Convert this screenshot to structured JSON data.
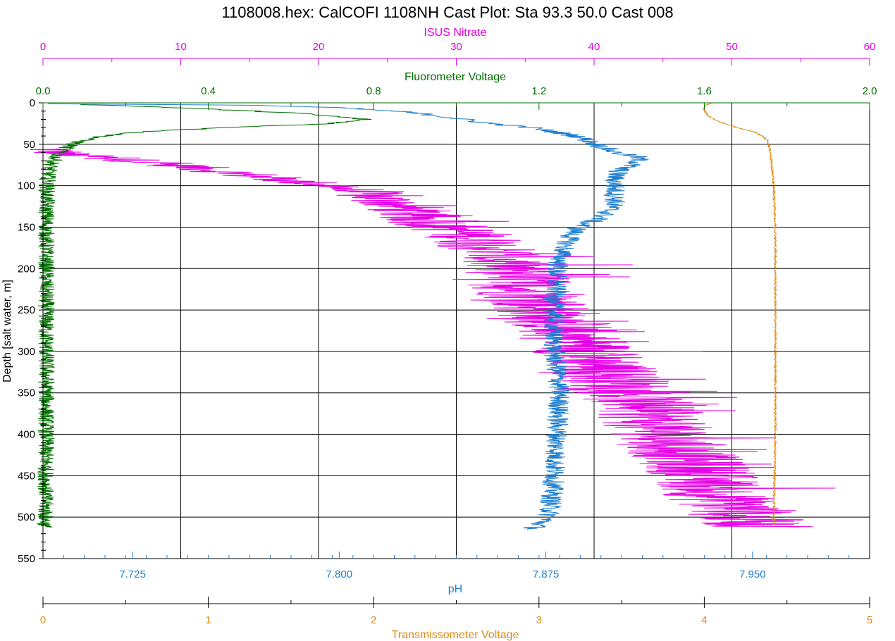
{
  "chart_data": {
    "type": "line",
    "title": "1108008.hex: CalCOFI 1108NH Cast Plot: Sta 93.3 50.0 Cast 008",
    "depth_axis": {
      "label": "Depth [salt water, m]",
      "range": [
        0,
        550
      ],
      "ticks": [
        "0",
        "50",
        "100",
        "150",
        "200",
        "250",
        "300",
        "350",
        "400",
        "450",
        "500",
        "550"
      ],
      "grid": true
    },
    "axes": {
      "nitrate": {
        "label": "ISUS Nitrate",
        "range": [
          0,
          60
        ],
        "ticks": [
          "0",
          "10",
          "20",
          "30",
          "40",
          "50",
          "60"
        ],
        "color": "#e600e6",
        "position": "top"
      },
      "fluorometer": {
        "label": "Fluorometer Voltage",
        "range": [
          0,
          2
        ],
        "ticks": [
          "0.0",
          "0.4",
          "0.8",
          "1.2",
          "1.6",
          "2.0"
        ],
        "color": "#007000",
        "position": "top"
      },
      "ph": {
        "label": "pH",
        "range": [
          7.6925,
          7.9925
        ],
        "ticks": [
          "7.725",
          "7.800",
          "7.875",
          "7.950"
        ],
        "color": "#1f7fcf",
        "position": "bottom"
      },
      "transmissometer": {
        "label": "Transmissometer Voltage",
        "range": [
          0,
          5
        ],
        "ticks": [
          "0",
          "1",
          "2",
          "3",
          "4",
          "5"
        ],
        "color": "#e08a10",
        "position": "bottom"
      }
    },
    "series": [
      {
        "name": "ISUS Nitrate",
        "axis": "nitrate",
        "depth": [
          55,
          62,
          70,
          80,
          90,
          100,
          110,
          125,
          140,
          150,
          160,
          175,
          200,
          225,
          250,
          275,
          300,
          325,
          350,
          375,
          400,
          425,
          450,
          475,
          500,
          512
        ],
        "values": [
          0.3,
          1.5,
          7,
          12,
          16,
          21,
          23.5,
          26,
          27.5,
          29.5,
          31,
          32.5,
          34,
          35,
          36.5,
          38,
          39.5,
          41,
          42.5,
          44,
          45,
          46.5,
          48,
          49,
          51,
          52
        ],
        "noise": 4
      },
      {
        "name": "Fluorometer Voltage",
        "axis": "fluorometer",
        "depth": [
          2,
          5,
          8,
          12,
          17,
          20,
          25,
          30,
          35,
          40,
          45,
          50,
          55,
          60,
          70,
          80,
          100,
          150,
          200,
          300,
          400,
          500,
          512
        ],
        "values": [
          0.1,
          0.28,
          0.42,
          0.6,
          0.72,
          0.78,
          0.7,
          0.44,
          0.24,
          0.15,
          0.1,
          0.07,
          0.055,
          0.04,
          0.025,
          0.015,
          0.01,
          0.008,
          0.008,
          0.008,
          0.008,
          0.006,
          0.004
        ],
        "noise": 0.02
      },
      {
        "name": "pH",
        "axis": "ph",
        "depth": [
          1,
          3,
          6,
          10,
          15,
          20,
          25,
          30,
          35,
          40,
          45,
          50,
          55,
          60,
          65,
          70,
          75,
          80,
          90,
          100,
          110,
          120,
          130,
          140,
          145,
          150,
          160,
          180,
          200,
          250,
          300,
          320,
          350,
          400,
          450,
          480,
          500,
          510,
          515
        ],
        "values": [
          7.694,
          7.77,
          7.8,
          7.82,
          7.835,
          7.845,
          7.855,
          7.87,
          7.878,
          7.886,
          7.89,
          7.893,
          7.897,
          7.9,
          7.908,
          7.909,
          7.906,
          7.902,
          7.9,
          7.9,
          7.9,
          7.9,
          7.898,
          7.894,
          7.89,
          7.887,
          7.884,
          7.881,
          7.879,
          7.878,
          7.878,
          7.879,
          7.88,
          7.879,
          7.878,
          7.877,
          7.876,
          7.872,
          7.87
        ],
        "noise": 0.004
      },
      {
        "name": "Transmissometer Voltage",
        "axis": "transmissometer",
        "depth": [
          0,
          3,
          8,
          15,
          20,
          25,
          30,
          35,
          40,
          45,
          50,
          60,
          80,
          100,
          150,
          200,
          300,
          400,
          500,
          510
        ],
        "values": [
          4.05,
          4.0,
          4.0,
          4.02,
          4.06,
          4.12,
          4.2,
          4.3,
          4.35,
          4.38,
          4.39,
          4.4,
          4.41,
          4.42,
          4.43,
          4.43,
          4.43,
          4.43,
          4.42,
          4.42
        ],
        "noise": 0.006
      }
    ]
  }
}
